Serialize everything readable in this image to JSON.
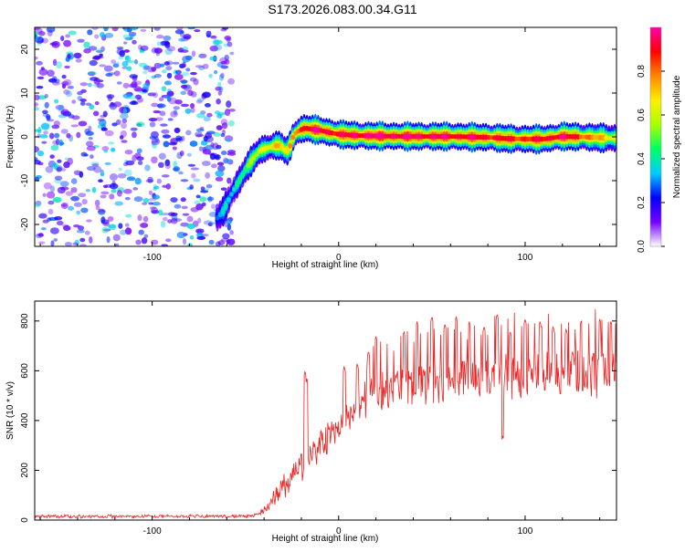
{
  "figure_title": "S173.2026.083.00.34.G11",
  "colors": {
    "snr_line": "#ee2222",
    "axis": "#000000",
    "background": "#ffffff"
  },
  "chart_data": [
    {
      "type": "heatmap",
      "title": "S173.2026.083.00.34.G11",
      "xlabel": "Height of straight line (km)",
      "ylabel": "Frequency (Hz)",
      "xlim": [
        -163,
        149
      ],
      "ylim": [
        -25,
        25
      ],
      "x_ticks": [
        -100,
        0,
        100
      ],
      "y_ticks": [
        -20,
        -10,
        0,
        10,
        20
      ],
      "colorbar": {
        "label": "Normalized spectral amplitude",
        "range": [
          0.0,
          1.0
        ],
        "ticks": [
          "0.0",
          "0.2",
          "0.4",
          "0.6",
          "0.8"
        ],
        "colormap": [
          "#ffffff",
          "#7700ff",
          "#0000ff",
          "#00ccff",
          "#00ff66",
          "#aaff00",
          "#ffee00",
          "#ff8800",
          "#ff0000",
          "#ff00aa"
        ]
      },
      "noise_region_x": [
        -163,
        -57
      ],
      "ridge": {
        "x": [
          -65,
          -62,
          -58,
          -54,
          -50,
          -46,
          -42,
          -38,
          -34,
          -31,
          -28,
          -26,
          -24,
          -21,
          -18,
          -15,
          -10,
          -5,
          0,
          10,
          20,
          40,
          60,
          80,
          90,
          100,
          110,
          120,
          130,
          140,
          149
        ],
        "y": [
          -18.5,
          -17,
          -13.5,
          -10.5,
          -7.5,
          -5,
          -3,
          -2.5,
          -2,
          -2,
          -3.5,
          -2,
          0.5,
          1.5,
          2,
          1.8,
          1.5,
          1.0,
          0.6,
          0.3,
          0.2,
          0.1,
          0.1,
          -0.1,
          -0.4,
          -0.5,
          -0.5,
          0.1,
          0.0,
          -0.2,
          -0.3
        ],
        "amplitude": [
          0.25,
          0.3,
          0.35,
          0.4,
          0.45,
          0.5,
          0.6,
          0.65,
          0.7,
          0.68,
          0.6,
          0.72,
          0.8,
          0.85,
          0.9,
          0.92,
          0.95,
          0.93,
          0.9,
          0.94,
          0.97,
          0.96,
          0.94,
          0.9,
          0.88,
          0.85,
          0.9,
          0.95,
          0.85,
          0.7,
          0.6
        ]
      }
    },
    {
      "type": "line",
      "title": "",
      "xlabel": "Height of straight line (km)",
      "ylabel": "SNR (10 * v/v)",
      "xlim": [
        -163,
        149
      ],
      "ylim": [
        0,
        880
      ],
      "x_ticks": [
        -100,
        0,
        100
      ],
      "y_ticks": [
        0,
        200,
        400,
        600,
        800
      ],
      "series": [
        {
          "name": "SNR",
          "color": "#ee2222",
          "envelope": {
            "x": [
              -163,
              -60,
              -45,
              -40,
              -35,
              -30,
              -25,
              -20,
              -15,
              -10,
              -5,
              0,
              5,
              10,
              15,
              20,
              30,
              40,
              50,
              60,
              80,
              100,
              120,
              149
            ],
            "mean": [
              15,
              15,
              18,
              40,
              80,
              130,
              170,
              220,
              270,
              300,
              340,
              380,
              410,
              440,
              470,
              500,
              530,
              550,
              560,
              570,
              580,
              585,
              590,
              600
            ],
            "spread": [
              12,
              12,
              15,
              40,
              60,
              80,
              90,
              100,
              110,
              110,
              120,
              120,
              130,
              130,
              140,
              140,
              150,
              160,
              160,
              160,
              170,
              170,
              170,
              180
            ]
          },
          "spikes": [
            {
              "x": -18,
              "y": 600
            },
            {
              "x": -17,
              "y": 570
            },
            {
              "x": 3,
              "y": 620
            },
            {
              "x": 10,
              "y": 630
            },
            {
              "x": 16,
              "y": 680
            },
            {
              "x": 20,
              "y": 740
            },
            {
              "x": 35,
              "y": 760
            },
            {
              "x": 42,
              "y": 800
            },
            {
              "x": 50,
              "y": 820
            },
            {
              "x": 57,
              "y": 790
            },
            {
              "x": 63,
              "y": 820
            },
            {
              "x": 70,
              "y": 800
            },
            {
              "x": 78,
              "y": 780
            },
            {
              "x": 85,
              "y": 830
            },
            {
              "x": 88,
              "y": 870
            },
            {
              "x": 92,
              "y": 760
            },
            {
              "x": 100,
              "y": 810
            },
            {
              "x": 108,
              "y": 800
            },
            {
              "x": 115,
              "y": 780
            },
            {
              "x": 122,
              "y": 770
            },
            {
              "x": 130,
              "y": 800
            },
            {
              "x": 140,
              "y": 810
            },
            {
              "x": 146,
              "y": 800
            },
            {
              "x": 88,
              "y": 340
            }
          ]
        }
      ]
    }
  ]
}
